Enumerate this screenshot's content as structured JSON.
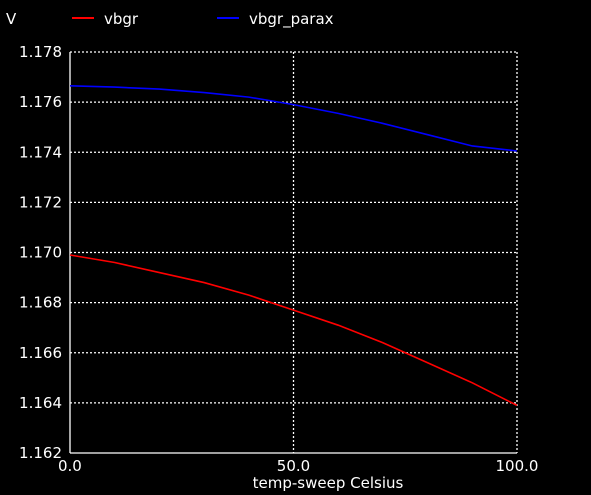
{
  "chart_data": {
    "type": "line",
    "ylabel": "V",
    "xlabel": "temp-sweep  Celsius",
    "xlim": [
      0,
      100
    ],
    "ylim": [
      1.162,
      1.178
    ],
    "x_ticks": [
      "0.0",
      "50.0",
      "100.0"
    ],
    "y_ticks": [
      "1.178",
      "1.176",
      "1.174",
      "1.172",
      "1.170",
      "1.168",
      "1.166",
      "1.164",
      "1.162"
    ],
    "grid": true,
    "legend_position": "top",
    "x": [
      0,
      10,
      20,
      30,
      40,
      50,
      60,
      70,
      80,
      90,
      100
    ],
    "series": [
      {
        "name": "vbgr",
        "color": "#ff0000",
        "values": [
          1.1699,
          1.1696,
          1.1692,
          1.1688,
          1.1683,
          1.1677,
          1.1671,
          1.1664,
          1.1656,
          1.1648,
          1.1639
        ]
      },
      {
        "name": "vbgr_parax",
        "color": "#0000ff",
        "values": [
          1.17665,
          1.1766,
          1.17652,
          1.17638,
          1.1762,
          1.1759,
          1.17555,
          1.17515,
          1.1747,
          1.17425,
          1.17405
        ]
      }
    ]
  }
}
